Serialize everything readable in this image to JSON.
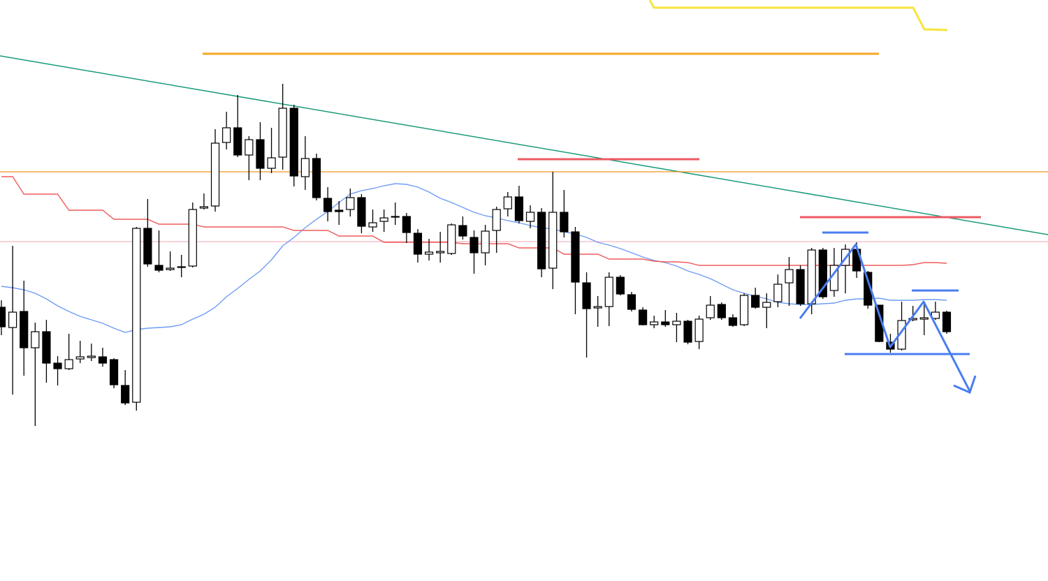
{
  "chart_data": {
    "type": "candlestick",
    "ylim": [
      0,
      832
    ],
    "up_color": "#ffffff",
    "down_color": "#000000",
    "edge_color": "#000000",
    "open": [
      392,
      363,
      386,
      334,
      357,
      312,
      304,
      318,
      320,
      321,
      317,
      280,
      256,
      505,
      452,
      446,
      450,
      451,
      534,
      537,
      628,
      649,
      610,
      632,
      591,
      607,
      677,
      579,
      605,
      548,
      531,
      532,
      549,
      507,
      515,
      522,
      522,
      498,
      468,
      470,
      469,
      509,
      492,
      470,
      502,
      533,
      550,
      515,
      528,
      448,
      528,
      500,
      427,
      391,
      393,
      435,
      410,
      388,
      367,
      371,
      367,
      372,
      343,
      377,
      396,
      377,
      367,
      409,
      392,
      400,
      427,
      446,
      397,
      474,
      416,
      452,
      475,
      442,
      395,
      342,
      332,
      374,
      375,
      376,
      385
    ],
    "high": [
      402,
      480,
      430,
      370,
      374,
      322,
      354,
      344,
      340,
      334,
      319,
      302,
      507,
      547,
      502,
      472,
      467,
      542,
      555,
      647,
      672,
      696,
      637,
      657,
      649,
      712,
      682,
      637,
      612,
      564,
      544,
      562,
      554,
      532,
      532,
      542,
      527,
      504,
      490,
      500,
      512,
      522,
      502,
      510,
      536,
      557,
      566,
      538,
      534,
      586,
      560,
      507,
      442,
      408,
      442,
      438,
      414,
      392,
      380,
      388,
      384,
      374,
      380,
      408,
      399,
      382,
      412,
      420,
      412,
      439,
      464,
      452,
      477,
      477,
      477,
      482,
      485,
      444,
      395,
      354,
      400,
      394,
      400,
      400,
      387
    ],
    "low": [
      352,
      267,
      294,
      222,
      284,
      280,
      302,
      312,
      315,
      307,
      276,
      252,
      244,
      450,
      442,
      444,
      435,
      449,
      532,
      529,
      618,
      607,
      574,
      574,
      584,
      589,
      565,
      560,
      545,
      515,
      510,
      522,
      498,
      500,
      500,
      510,
      484,
      456,
      459,
      456,
      467,
      489,
      440,
      452,
      470,
      522,
      512,
      505,
      435,
      418,
      492,
      382,
      320,
      364,
      365,
      409,
      386,
      366,
      362,
      364,
      342,
      339,
      332,
      374,
      374,
      364,
      365,
      390,
      362,
      392,
      394,
      394,
      382,
      404,
      407,
      412,
      434,
      390,
      342,
      327,
      330,
      372,
      352,
      374,
      354
    ],
    "close": [
      364,
      385,
      334,
      357,
      312,
      304,
      317,
      321,
      322,
      312,
      281,
      255,
      505,
      454,
      445,
      448,
      449,
      532,
      536,
      627,
      649,
      610,
      632,
      591,
      606,
      677,
      580,
      605,
      549,
      529,
      529,
      549,
      508,
      513,
      520,
      521,
      499,
      468,
      471,
      472,
      510,
      494,
      470,
      501,
      532,
      550,
      516,
      528,
      447,
      528,
      500,
      428,
      390,
      393,
      435,
      411,
      389,
      367,
      371,
      367,
      372,
      342,
      375,
      395,
      377,
      366,
      409,
      392,
      399,
      425,
      446,
      397,
      474,
      407,
      452,
      475,
      444,
      395,
      343,
      332,
      373,
      376,
      377,
      385,
      357
    ],
    "lines": [
      {
        "color": "#6f9cf5",
        "values": [
          422,
          420,
          417,
          412,
          404,
          394,
          386,
          379,
          374,
          369,
          362,
          356,
          360,
          362,
          363,
          364,
          367,
          375,
          382,
          392,
          407,
          419,
          432,
          444,
          460,
          480,
          492,
          506,
          518,
          529,
          542,
          554,
          559,
          562,
          566,
          569,
          568,
          564,
          557,
          548,
          542,
          535,
          528,
          523,
          520,
          516,
          513,
          509,
          506,
          504,
          500,
          497,
          492,
          485,
          481,
          476,
          470,
          464,
          459,
          456,
          451,
          444,
          439,
          433,
          425,
          417,
          412,
          408,
          404,
          399,
          397,
          396,
          396,
          397,
          398,
          402,
          404,
          404,
          405,
          402,
          402,
          402,
          403,
          403,
          402
        ]
      },
      {
        "color": "#f05b5b",
        "values": [
          579,
          579,
          554,
          554,
          554,
          554,
          531,
          531,
          531,
          531,
          518,
          518,
          518,
          518,
          511,
          511,
          511,
          511,
          507,
          507,
          507,
          507,
          507,
          507,
          507,
          507,
          502,
          502,
          502,
          502,
          494,
          494,
          494,
          494,
          485,
          485,
          485,
          485,
          485,
          485,
          485,
          483,
          483,
          483,
          483,
          483,
          477,
          477,
          477,
          477,
          468,
          468,
          468,
          468,
          461,
          461,
          461,
          461,
          458,
          457,
          457,
          456,
          452,
          452,
          452,
          452,
          452,
          452,
          452,
          452,
          452,
          452,
          452,
          452,
          452,
          452,
          452,
          452,
          452,
          452,
          452,
          453,
          456,
          456,
          455
        ]
      }
    ]
  }
}
